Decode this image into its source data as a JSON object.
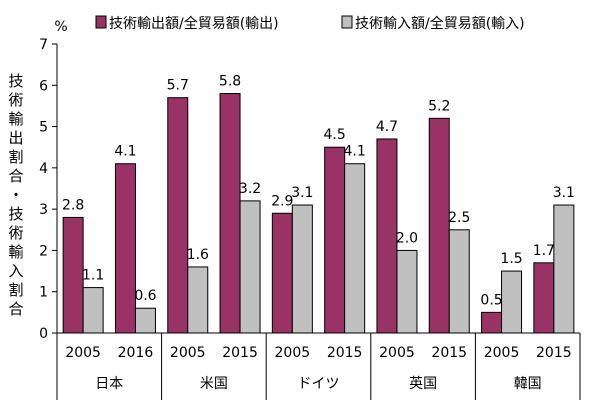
{
  "chart_data": {
    "type": "bar",
    "unit": "%",
    "ylabel": "技術輸出割合・技術輸入割合",
    "ylim": [
      0,
      7
    ],
    "yticks": [
      0,
      1,
      2,
      3,
      4,
      5,
      6,
      7
    ],
    "grid": false,
    "legend_position": "top",
    "groups": [
      {
        "country": "日本",
        "years": [
          "2005",
          "2016"
        ]
      },
      {
        "country": "米国",
        "years": [
          "2005",
          "2015"
        ]
      },
      {
        "country": "ドイツ",
        "years": [
          "2005",
          "2015"
        ]
      },
      {
        "country": "英国",
        "years": [
          "2005",
          "2015"
        ]
      },
      {
        "country": "韓国",
        "years": [
          "2005",
          "2015"
        ]
      }
    ],
    "series": [
      {
        "name": "技術輸出額/全貿易額(輸出)",
        "color": "#993366",
        "values": [
          2.8,
          4.1,
          5.7,
          5.8,
          2.9,
          4.5,
          4.7,
          5.2,
          0.5,
          1.7
        ],
        "labels": [
          "2.8",
          "4.1",
          "5.7",
          "5.8",
          "2.9",
          "4.5",
          "4.7",
          "5.2",
          "0.5",
          "1.7"
        ]
      },
      {
        "name": "技術輸入額/全貿易額(輸入)",
        "color": "#c0c0c0",
        "values": [
          1.1,
          0.6,
          1.6,
          3.2,
          3.1,
          4.1,
          2.0,
          2.5,
          1.5,
          3.1
        ],
        "labels": [
          "1.1",
          "0.6",
          "1.6",
          "3.2",
          "3.1",
          "4.1",
          "2.0",
          "2.5",
          "1.5",
          "3.1"
        ]
      }
    ]
  }
}
